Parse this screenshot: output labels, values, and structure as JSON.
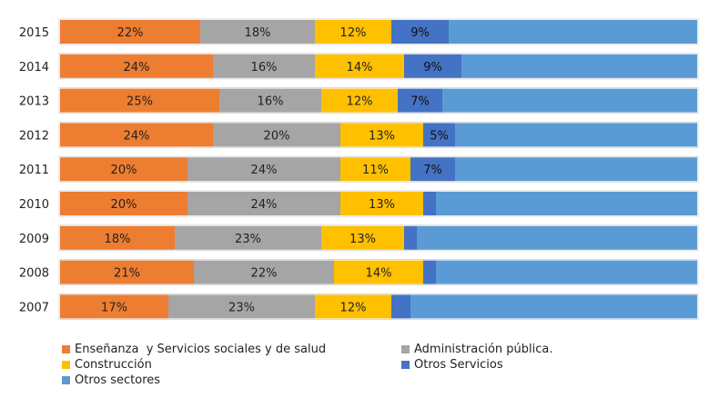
{
  "chart_data": {
    "type": "bar",
    "orientation": "horizontal",
    "stacked": "percent",
    "categories": [
      "2015",
      "2014",
      "2013",
      "2012",
      "2011",
      "2010",
      "2009",
      "2008",
      "2007"
    ],
    "series": [
      {
        "name": "Enseñanza  y Servicios sociales y de salud",
        "color": "#ED7D31",
        "values": [
          22,
          24,
          25,
          24,
          20,
          20,
          18,
          21,
          17
        ],
        "labels": [
          "22%",
          "24%",
          "25%",
          "24%",
          "20%",
          "20%",
          "18%",
          "21%",
          "17%"
        ]
      },
      {
        "name": "Administración pública.",
        "color": "#A5A5A5",
        "values": [
          18,
          16,
          16,
          20,
          24,
          24,
          23,
          22,
          23
        ],
        "labels": [
          "18%",
          "16%",
          "16%",
          "20%",
          "24%",
          "24%",
          "23%",
          "22%",
          "23%"
        ]
      },
      {
        "name": "Construcción",
        "color": "#FFC000",
        "values": [
          12,
          14,
          12,
          13,
          11,
          13,
          13,
          14,
          12
        ],
        "labels": [
          "12%",
          "14%",
          "12%",
          "13%",
          "11%",
          "13%",
          "13%",
          "14%",
          "12%"
        ]
      },
      {
        "name": "Otros Servicios",
        "color": "#4472C4",
        "values": [
          9,
          9,
          7,
          5,
          7,
          2,
          2,
          2,
          3
        ],
        "labels": [
          "9%",
          "9%",
          "7%",
          "5%",
          "7%",
          "",
          "",
          "",
          ""
        ]
      },
      {
        "name": "Otros sectores",
        "color": "#5B9BD5",
        "values": [
          39,
          37,
          40,
          38,
          38,
          41,
          44,
          41,
          45
        ],
        "labels": [
          "",
          "",
          "",
          "",
          "",
          "",
          "",
          "",
          ""
        ]
      }
    ],
    "xlim": [
      0,
      100
    ],
    "grid": false,
    "legend": "bottom"
  }
}
